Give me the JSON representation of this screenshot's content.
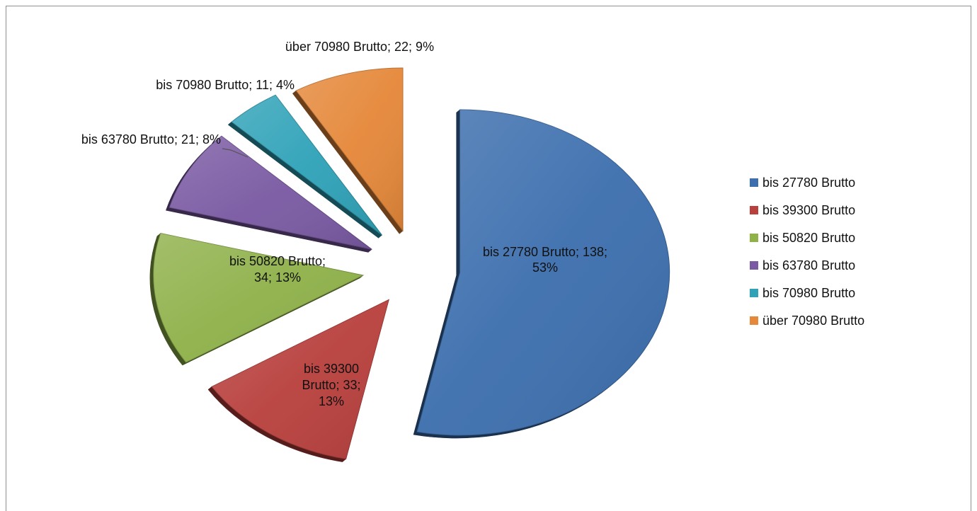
{
  "chart_data": {
    "type": "pie",
    "style": "3d-exploded",
    "slices": [
      {
        "name": "bis 27780 Brutto",
        "value": 138,
        "percent": 53,
        "color": "#3d6fae",
        "label_lines": [
          "bis 27780 Brutto; 138;",
          "53%"
        ]
      },
      {
        "name": "bis 39300 Brutto",
        "value": 33,
        "percent": 13,
        "color": "#b8403d",
        "label_lines": [
          "bis 39300",
          "Brutto; 33;",
          "13%"
        ]
      },
      {
        "name": "bis 50820 Brutto",
        "value": 34,
        "percent": 13,
        "color": "#8fb14a",
        "label_lines": [
          "bis 50820 Brutto;",
          "34; 13%"
        ]
      },
      {
        "name": "bis 63780 Brutto",
        "value": 21,
        "percent": 8,
        "color": "#7a5aa3",
        "label_lines": [
          "bis 63780 Brutto; 21; 8%"
        ]
      },
      {
        "name": "bis 70980 Brutto",
        "value": 11,
        "percent": 4,
        "color": "#2fa2b8",
        "label_lines": [
          "bis 70980 Brutto; 11; 4%"
        ]
      },
      {
        "name": "über 70980 Brutto",
        "value": 22,
        "percent": 9,
        "color": "#e5883a",
        "label_lines": [
          "über 70980 Brutto; 22; 9%"
        ]
      }
    ],
    "legend": {
      "placement": "right",
      "entries": [
        "bis 27780 Brutto",
        "bis 39300 Brutto",
        "bis 50820 Brutto",
        "bis 63780 Brutto",
        "bis 70980 Brutto",
        "über 70980 Brutto"
      ]
    }
  }
}
